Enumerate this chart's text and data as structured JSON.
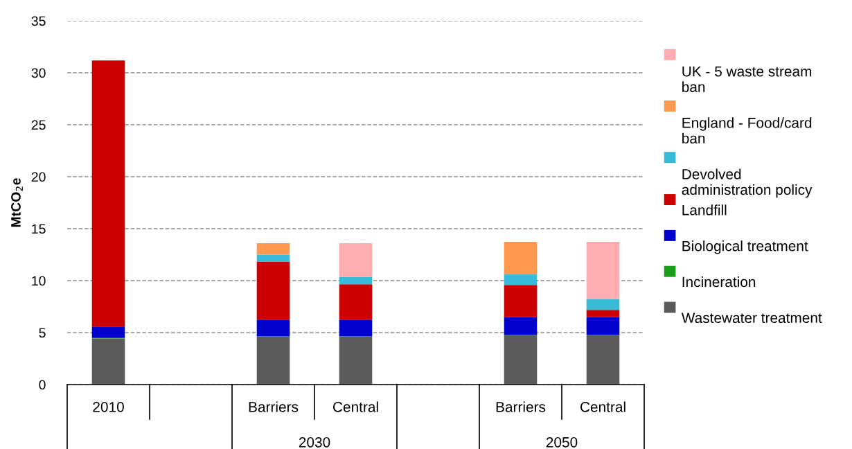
{
  "chart_data": {
    "type": "bar",
    "stacked": true,
    "ylabel": "MtCO$_{2}$e",
    "categories": [
      "2010",
      null,
      "Barriers",
      "Central",
      null,
      "Barriers",
      "Central"
    ],
    "annotations": [
      "2030",
      "2050"
    ],
    "series": [
      {
        "name": "Wastewater treatment",
        "color": "#5b5b5b",
        "values": [
          4.43,
          null,
          4.6,
          4.6,
          null,
          4.73,
          4.73
        ]
      },
      {
        "name": "Incineration",
        "color": "#1a9e1a",
        "values": [
          0.05,
          null,
          0.05,
          0.05,
          null,
          0.05,
          0.05
        ]
      },
      {
        "name": "Biological treatment",
        "color": "#0000cc",
        "values": [
          1.1,
          null,
          1.6,
          1.6,
          null,
          1.7,
          1.7
        ]
      },
      {
        "name": "Landfill",
        "color": "#cc0000",
        "values": [
          25.6,
          null,
          5.55,
          3.4,
          null,
          3.1,
          0.7
        ]
      },
      {
        "name": "Devolved administration policy",
        "color": "#36bcd9",
        "values": [
          null,
          null,
          0.7,
          0.7,
          null,
          1.05,
          1.05
        ]
      },
      {
        "name": "England - Food/card ban",
        "color": "#ff9950",
        "values": [
          null,
          null,
          1.1,
          null,
          null,
          3.1,
          null
        ]
      },
      {
        "name": "UK - 5 waste stream ban",
        "color": "#ffadb0",
        "values": [
          null,
          null,
          null,
          3.25,
          null,
          null,
          5.5
        ]
      }
    ],
    "ylim": [
      0,
      35
    ],
    "yticks": [
      0,
      5,
      10,
      15,
      20,
      25,
      30,
      35
    ],
    "grid": "y",
    "legend": "right"
  }
}
